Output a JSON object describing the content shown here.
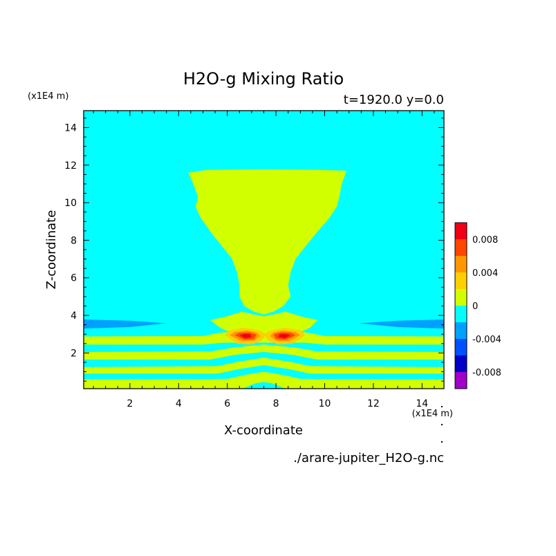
{
  "chart_data": {
    "type": "heatmap",
    "title": "H2O-g Mixing Ratio",
    "subtitle": "t=1920.0 y=0.0",
    "xlabel": "X-coordinate",
    "ylabel": "Z-coordinate",
    "x_unit": "(x1E4 m)",
    "y_unit": "(x1E4 m)",
    "footer": "./arare-jupiter_H2O-g.nc",
    "xlim": [
      0.1,
      14.9
    ],
    "ylim": [
      0.1,
      14.9
    ],
    "x_ticks": [
      2,
      4,
      6,
      8,
      10,
      12,
      14
    ],
    "y_ticks": [
      2,
      4,
      6,
      8,
      10,
      12,
      14
    ],
    "colorbar": {
      "levels": [
        -0.01,
        -0.008,
        -0.006,
        -0.004,
        -0.002,
        0,
        0.002,
        0.004,
        0.006,
        0.008,
        0.01
      ],
      "colors": [
        "#a000c8",
        "#0000c8",
        "#0050ff",
        "#00a0ff",
        "#00ffff",
        "#d2ff00",
        "#ffd000",
        "#ff9600",
        "#ff4600",
        "#f00014",
        "#ffb4b4"
      ],
      "tick_labels": [
        "-0.008",
        "-0.004",
        "0",
        "0.004",
        "0.008"
      ],
      "tick_values": [
        -0.008,
        -0.004,
        0,
        0.004,
        0.008
      ]
    },
    "background_level_color": "#00ffff",
    "regions": [
      {
        "level": "0 to 0.002",
        "color": "#d2ff00",
        "polygon": [
          [
            4.4,
            11.6
          ],
          [
            5.2,
            11.75
          ],
          [
            7.5,
            11.78
          ],
          [
            9.8,
            11.75
          ],
          [
            10.9,
            11.7
          ],
          [
            10.7,
            11.0
          ],
          [
            10.6,
            10.3
          ],
          [
            10.5,
            9.8
          ],
          [
            10.2,
            9.2
          ],
          [
            9.6,
            8.3
          ],
          [
            9.1,
            7.5
          ],
          [
            8.8,
            7.0
          ],
          [
            8.6,
            6.3
          ],
          [
            8.5,
            5.6
          ],
          [
            8.6,
            5.0
          ],
          [
            8.3,
            4.5
          ],
          [
            7.9,
            4.2
          ],
          [
            7.5,
            4.05
          ],
          [
            7.1,
            4.2
          ],
          [
            6.7,
            4.5
          ],
          [
            6.5,
            5.0
          ],
          [
            6.5,
            5.6
          ],
          [
            6.4,
            6.3
          ],
          [
            6.2,
            7.0
          ],
          [
            5.9,
            7.5
          ],
          [
            5.4,
            8.3
          ],
          [
            4.9,
            9.2
          ],
          [
            4.7,
            9.8
          ],
          [
            4.8,
            10.3
          ],
          [
            4.6,
            11.0
          ]
        ]
      },
      {
        "level": "0 to 0.002",
        "color": "#d2ff00",
        "polygon": [
          [
            5.3,
            3.75
          ],
          [
            6.0,
            3.95
          ],
          [
            6.6,
            4.2
          ],
          [
            7.1,
            4.05
          ],
          [
            7.5,
            3.95
          ],
          [
            7.9,
            4.05
          ],
          [
            8.4,
            4.2
          ],
          [
            9.0,
            3.95
          ],
          [
            9.7,
            3.75
          ],
          [
            9.4,
            3.35
          ],
          [
            9.0,
            3.1
          ],
          [
            6.1,
            3.1
          ],
          [
            5.7,
            3.35
          ]
        ]
      },
      {
        "level": "-0.002 to 0",
        "color": "#00a0ff",
        "polygon": [
          [
            0.1,
            3.78
          ],
          [
            2.0,
            3.72
          ],
          [
            3.5,
            3.58
          ],
          [
            2.0,
            3.38
          ],
          [
            0.1,
            3.3
          ]
        ]
      },
      {
        "level": "-0.002 to 0",
        "color": "#00a0ff",
        "polygon": [
          [
            14.9,
            3.78
          ],
          [
            13.0,
            3.72
          ],
          [
            11.4,
            3.58
          ],
          [
            13.0,
            3.38
          ],
          [
            14.9,
            3.3
          ]
        ]
      },
      {
        "level": "0 to 0.002",
        "color": "#d2ff00",
        "polygon": [
          [
            0.1,
            2.88
          ],
          [
            5.0,
            2.9
          ],
          [
            5.8,
            3.1
          ],
          [
            9.2,
            3.1
          ],
          [
            10.0,
            2.9
          ],
          [
            14.9,
            2.88
          ],
          [
            14.9,
            2.45
          ],
          [
            10.0,
            2.45
          ],
          [
            9.2,
            2.55
          ],
          [
            5.8,
            2.55
          ],
          [
            5.0,
            2.45
          ],
          [
            0.1,
            2.45
          ]
        ]
      },
      {
        "level": "0 to 0.002",
        "color": "#d2ff00",
        "polygon": [
          [
            0.1,
            2.05
          ],
          [
            5.3,
            2.08
          ],
          [
            6.3,
            2.3
          ],
          [
            7.5,
            2.45
          ],
          [
            8.7,
            2.3
          ],
          [
            9.7,
            2.08
          ],
          [
            14.9,
            2.05
          ],
          [
            14.9,
            1.65
          ],
          [
            9.7,
            1.65
          ],
          [
            8.7,
            1.9
          ],
          [
            7.5,
            2.05
          ],
          [
            6.3,
            1.9
          ],
          [
            5.3,
            1.65
          ],
          [
            0.1,
            1.65
          ]
        ]
      },
      {
        "level": "0 to 0.002",
        "color": "#d2ff00",
        "polygon": [
          [
            0.1,
            1.25
          ],
          [
            5.6,
            1.3
          ],
          [
            6.5,
            1.55
          ],
          [
            7.5,
            1.75
          ],
          [
            8.5,
            1.55
          ],
          [
            9.4,
            1.3
          ],
          [
            14.9,
            1.25
          ],
          [
            14.9,
            0.9
          ],
          [
            9.4,
            0.9
          ],
          [
            8.5,
            1.15
          ],
          [
            7.5,
            1.35
          ],
          [
            6.5,
            1.15
          ],
          [
            5.6,
            0.9
          ],
          [
            0.1,
            0.9
          ]
        ]
      },
      {
        "level": "0 to 0.002",
        "color": "#d2ff00",
        "polygon": [
          [
            0.1,
            0.6
          ],
          [
            6.0,
            0.62
          ],
          [
            6.8,
            0.85
          ],
          [
            7.5,
            1.0
          ],
          [
            8.2,
            0.85
          ],
          [
            9.0,
            0.62
          ],
          [
            14.9,
            0.6
          ],
          [
            14.9,
            0.1
          ],
          [
            8.4,
            0.1
          ],
          [
            7.8,
            0.4
          ],
          [
            7.5,
            0.45
          ],
          [
            7.2,
            0.4
          ],
          [
            6.6,
            0.1
          ],
          [
            0.1,
            0.1
          ]
        ]
      },
      {
        "level": "0.002 to 0.004",
        "color": "#ffd000",
        "polygon": [
          [
            5.9,
            2.95
          ],
          [
            6.1,
            3.2
          ],
          [
            6.7,
            3.35
          ],
          [
            7.3,
            3.2
          ],
          [
            7.6,
            3.0
          ],
          [
            7.4,
            2.65
          ],
          [
            7.0,
            2.45
          ],
          [
            6.4,
            2.5
          ]
        ]
      },
      {
        "level": "0.002 to 0.004",
        "color": "#ffd000",
        "polygon": [
          [
            9.2,
            2.95
          ],
          [
            9.0,
            3.2
          ],
          [
            8.4,
            3.35
          ],
          [
            7.8,
            3.2
          ],
          [
            7.5,
            3.0
          ],
          [
            7.7,
            2.65
          ],
          [
            8.1,
            2.45
          ],
          [
            8.7,
            2.5
          ]
        ]
      },
      {
        "level": "0.004 to 0.006",
        "color": "#ff9600",
        "polygon": [
          [
            6.1,
            2.95
          ],
          [
            6.3,
            3.12
          ],
          [
            6.8,
            3.2
          ],
          [
            7.2,
            3.1
          ],
          [
            7.35,
            2.9
          ],
          [
            7.1,
            2.65
          ],
          [
            6.6,
            2.62
          ]
        ]
      },
      {
        "level": "0.004 to 0.006",
        "color": "#ff9600",
        "polygon": [
          [
            9.0,
            2.95
          ],
          [
            8.8,
            3.12
          ],
          [
            8.3,
            3.2
          ],
          [
            7.9,
            3.1
          ],
          [
            7.75,
            2.9
          ],
          [
            8.0,
            2.65
          ],
          [
            8.5,
            2.62
          ]
        ]
      },
      {
        "level": "0.006 to 0.008",
        "color": "#ff4600",
        "polygon": [
          [
            6.3,
            2.95
          ],
          [
            6.5,
            3.08
          ],
          [
            6.9,
            3.1
          ],
          [
            7.2,
            2.98
          ],
          [
            7.1,
            2.75
          ],
          [
            6.7,
            2.7
          ]
        ]
      },
      {
        "level": "0.006 to 0.008",
        "color": "#ff4600",
        "polygon": [
          [
            8.8,
            2.95
          ],
          [
            8.6,
            3.08
          ],
          [
            8.2,
            3.1
          ],
          [
            7.9,
            2.98
          ],
          [
            8.0,
            2.75
          ],
          [
            8.4,
            2.7
          ]
        ]
      },
      {
        "level": "0.008 to 0.01",
        "color": "#f00014",
        "polygon": [
          [
            6.5,
            2.93
          ],
          [
            6.7,
            3.02
          ],
          [
            6.95,
            3.0
          ],
          [
            7.0,
            2.85
          ],
          [
            6.75,
            2.78
          ]
        ]
      },
      {
        "level": "0.008 to 0.01",
        "color": "#f00014",
        "polygon": [
          [
            8.6,
            2.93
          ],
          [
            8.4,
            3.02
          ],
          [
            8.15,
            3.0
          ],
          [
            8.1,
            2.85
          ],
          [
            8.35,
            2.78
          ]
        ]
      }
    ]
  }
}
